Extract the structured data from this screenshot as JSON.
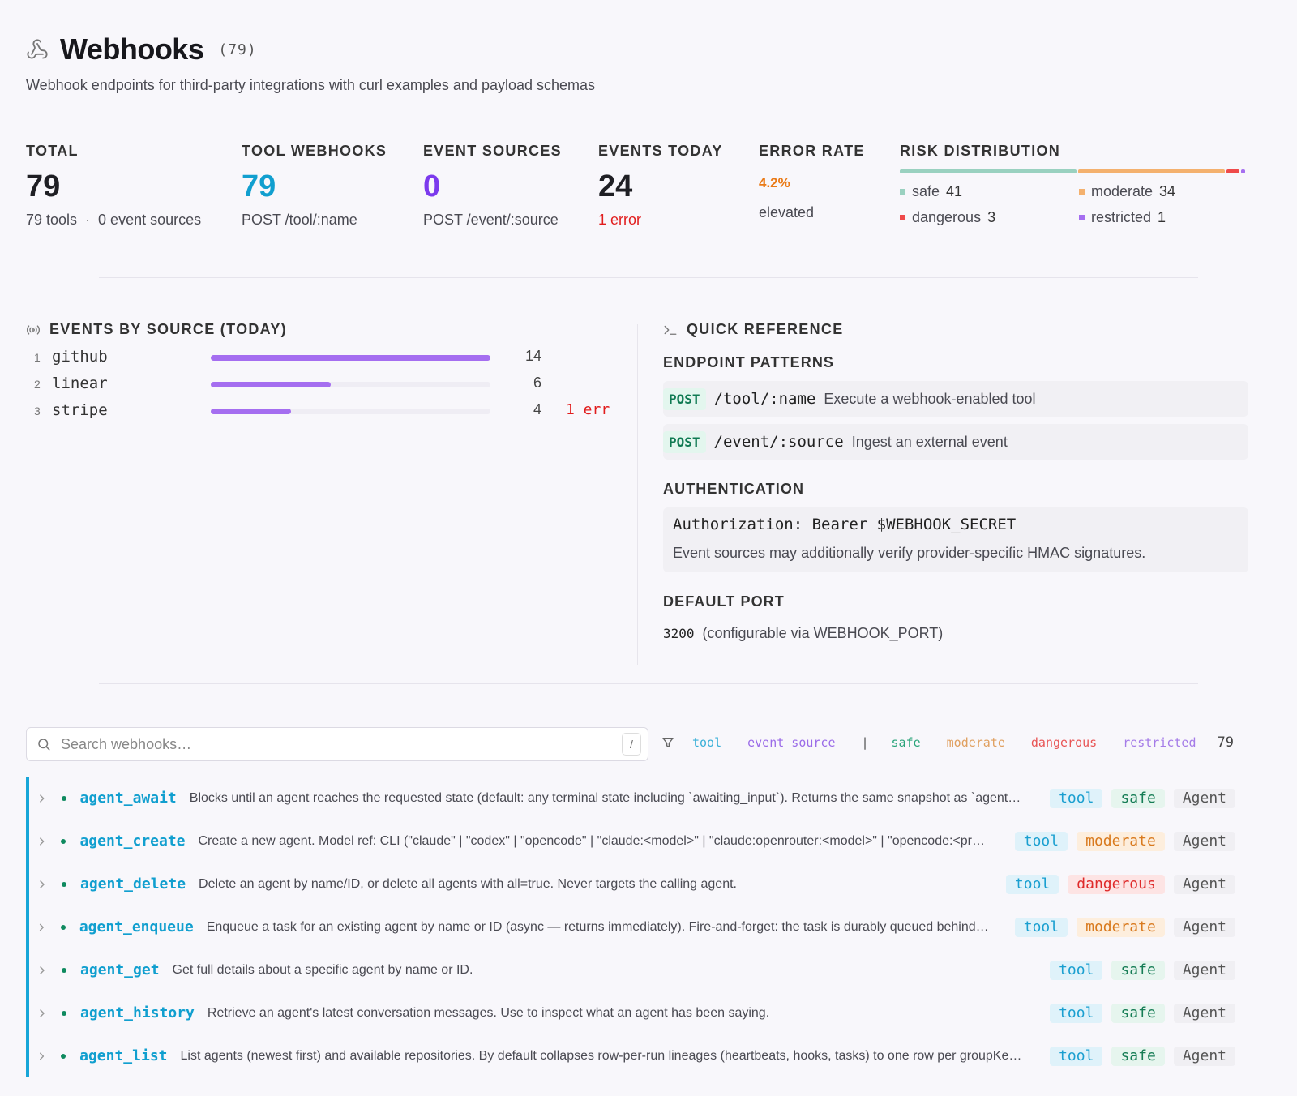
{
  "header": {
    "title": "Webhooks",
    "count": "(79)",
    "subtitle": "Webhook endpoints for third-party integrations with curl examples and payload schemas"
  },
  "stats": {
    "total": {
      "label": "TOTAL",
      "value": "79",
      "sub_a": "79 tools",
      "sub_sep": "·",
      "sub_b": "0 event sources"
    },
    "tool_webhooks": {
      "label": "TOOL WEBHOOKS",
      "value": "79",
      "sub": "POST /tool/:name",
      "color": "#119fcf"
    },
    "event_sources": {
      "label": "EVENT SOURCES",
      "value": "0",
      "sub": "POST /event/:source",
      "color": "#7c3aed"
    },
    "events_today": {
      "label": "EVENTS TODAY",
      "value": "24",
      "sub": "1 error"
    },
    "error_rate": {
      "label": "ERROR RATE",
      "value": "4.2%",
      "sub": "elevated",
      "color": "#ea7a16"
    },
    "risk": {
      "label": "RISK DISTRIBUTION",
      "items": [
        {
          "name": "safe",
          "count": 41,
          "color": "#9ad1c0"
        },
        {
          "name": "moderate",
          "count": 34,
          "color": "#f4b16e"
        },
        {
          "name": "dangerous",
          "count": 3,
          "color": "#ef4a4a"
        },
        {
          "name": "restricted",
          "count": 1,
          "color": "#a56ef0"
        }
      ]
    }
  },
  "events": {
    "title": "EVENTS BY SOURCE (TODAY)",
    "max": 14,
    "sources": [
      {
        "idx": "1",
        "name": "github",
        "count": 14,
        "err": ""
      },
      {
        "idx": "2",
        "name": "linear",
        "count": 6,
        "err": ""
      },
      {
        "idx": "3",
        "name": "stripe",
        "count": 4,
        "err": "1 err"
      }
    ]
  },
  "quick_ref": {
    "title": "QUICK REFERENCE",
    "endpoint_head": "ENDPOINT PATTERNS",
    "endpoints": [
      {
        "method": "POST",
        "path": "/tool/:name",
        "desc": "Execute a webhook-enabled tool"
      },
      {
        "method": "POST",
        "path": "/event/:source",
        "desc": "Ingest an external event"
      }
    ],
    "auth_head": "AUTHENTICATION",
    "auth_code": "Authorization: Bearer $WEBHOOK_SECRET",
    "auth_note": "Event sources may additionally verify provider-specific HMAC signatures.",
    "port_head": "DEFAULT PORT",
    "port": "3200",
    "port_note": "(configurable via WEBHOOK_PORT)"
  },
  "search": {
    "placeholder": "Search webhooks…",
    "shortcut": "/"
  },
  "filters": {
    "chips": [
      {
        "label": "tool",
        "color": "#3ab0d8"
      },
      {
        "label": "event source",
        "color": "#9b6ce8"
      },
      {
        "label": "safe",
        "color": "#2aa47a"
      },
      {
        "label": "moderate",
        "color": "#e0a060"
      },
      {
        "label": "dangerous",
        "color": "#e85454"
      },
      {
        "label": "restricted",
        "color": "#a57ce8"
      }
    ],
    "separator": "|",
    "total": "79"
  },
  "rows": [
    {
      "name": "agent_await",
      "desc": "Blocks until an agent reaches the requested state (default: any terminal state including `awaiting_input`). Returns the same snapshot as `agent_status`.",
      "kind": "tool",
      "risk": "safe",
      "category": "Agent"
    },
    {
      "name": "agent_create",
      "desc": "Create a new agent. Model ref: CLI (\"claude\" | \"codex\" | \"opencode\" | \"claude:<model>\" | \"claude:openrouter:<model>\" | \"opencode:<provider>\").",
      "kind": "tool",
      "risk": "moderate",
      "category": "Agent"
    },
    {
      "name": "agent_delete",
      "desc": "Delete an agent by name/ID, or delete all agents with all=true. Never targets the calling agent.",
      "kind": "tool",
      "risk": "dangerous",
      "category": "Agent"
    },
    {
      "name": "agent_enqueue",
      "desc": "Enqueue a task for an existing agent by name or ID (async — returns immediately). Fire-and-forget: the task is durably queued behind the current work.",
      "kind": "tool",
      "risk": "moderate",
      "category": "Agent"
    },
    {
      "name": "agent_get",
      "desc": "Get full details about a specific agent by name or ID.",
      "kind": "tool",
      "risk": "safe",
      "category": "Agent"
    },
    {
      "name": "agent_history",
      "desc": "Retrieve an agent's latest conversation messages. Use to inspect what an agent has been saying.",
      "kind": "tool",
      "risk": "safe",
      "category": "Agent"
    },
    {
      "name": "agent_list",
      "desc": "List agents (newest first) and available repositories. By default collapses row-per-run lineages (heartbeats, hooks, tasks) to one row per groupKey with a count.",
      "kind": "tool",
      "risk": "safe",
      "category": "Agent"
    }
  ]
}
